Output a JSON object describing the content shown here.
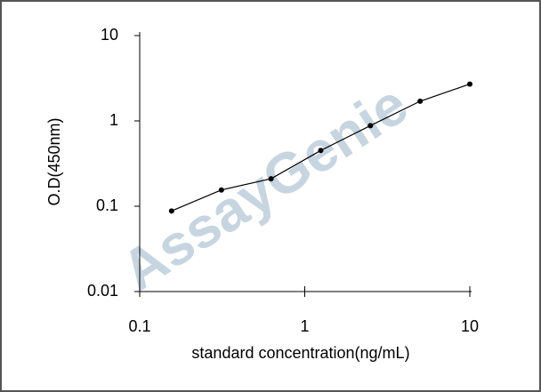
{
  "chart_data": {
    "type": "line",
    "xlabel": "standard concentration(ng/mL)",
    "ylabel": "O.D(450nm)",
    "watermark": "AssayGenie",
    "x": [
      0.156,
      0.3125,
      0.625,
      1.25,
      2.5,
      5,
      10
    ],
    "series": [
      {
        "color": "#000000",
        "values": [
          0.088,
          0.155,
          0.21,
          0.45,
          0.88,
          1.7,
          2.7
        ]
      }
    ],
    "xscale": "log",
    "yscale": "log",
    "xlim": [
      0.1,
      10
    ],
    "ylim": [
      0.01,
      10
    ],
    "xticks": [
      0.1,
      1,
      10
    ],
    "yticks": [
      0.01,
      0.1,
      1,
      10
    ]
  }
}
